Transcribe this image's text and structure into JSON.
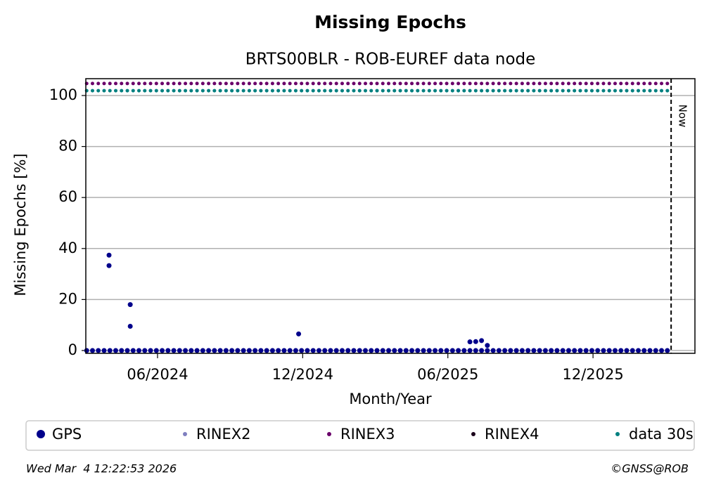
{
  "chart_data": {
    "type": "scatter",
    "title": "Missing Epochs",
    "subtitle": "BRTS00BLR - ROB-EUREF data node",
    "x_label": "Month/Year",
    "y_label": "Missing Epochs [%]",
    "xlim": [
      2024.167,
      2026.265
    ],
    "ylim": [
      -1.1,
      106.6
    ],
    "xticks": [
      {
        "value": 2024.414,
        "label": "06/2024"
      },
      {
        "value": 2024.914,
        "label": "12/2024"
      },
      {
        "value": 2025.414,
        "label": "06/2025"
      },
      {
        "value": 2025.914,
        "label": "12/2025"
      }
    ],
    "yticks": [
      0,
      20,
      40,
      60,
      80,
      100
    ],
    "grid": true,
    "now": 2026.183,
    "now_label": "Now",
    "x": [
      2024.17,
      2024.19,
      2024.21,
      2024.23,
      2024.25,
      2024.27,
      2024.29,
      2024.31,
      2024.33,
      2024.35,
      2024.37,
      2024.39,
      2024.41,
      2024.43,
      2024.45,
      2024.47,
      2024.49,
      2024.51,
      2024.53,
      2024.55,
      2024.57,
      2024.59,
      2024.61,
      2024.63,
      2024.65,
      2024.67,
      2024.69,
      2024.71,
      2024.73,
      2024.75,
      2024.77,
      2024.79,
      2024.81,
      2024.83,
      2024.85,
      2024.87,
      2024.89,
      2024.91,
      2024.93,
      2024.95,
      2024.97,
      2024.99,
      2025.01,
      2025.03,
      2025.05,
      2025.07,
      2025.09,
      2025.11,
      2025.13,
      2025.15,
      2025.17,
      2025.19,
      2025.21,
      2025.23,
      2025.25,
      2025.27,
      2025.29,
      2025.31,
      2025.33,
      2025.35,
      2025.37,
      2025.39,
      2025.41,
      2025.43,
      2025.45,
      2025.47,
      2025.49,
      2025.51,
      2025.53,
      2025.55,
      2025.57,
      2025.59,
      2025.61,
      2025.63,
      2025.65,
      2025.67,
      2025.69,
      2025.71,
      2025.73,
      2025.75,
      2025.77,
      2025.79,
      2025.81,
      2025.83,
      2025.85,
      2025.87,
      2025.89,
      2025.91,
      2025.93,
      2025.95,
      2025.97,
      2025.99,
      2026.01,
      2026.03,
      2026.05,
      2026.07,
      2026.09,
      2026.11,
      2026.13,
      2026.15,
      2026.17,
      2024.247,
      2024.247,
      2024.32,
      2024.32,
      2024.9,
      2025.49,
      2025.51,
      2025.53,
      2025.55
    ],
    "series": [
      {
        "name": "GPS",
        "color": "#00008b",
        "values": [
          0,
          0,
          0,
          0,
          0,
          0,
          0,
          0,
          0,
          0,
          0,
          0,
          0,
          0,
          0,
          0,
          0,
          0,
          0,
          0,
          0,
          0,
          0,
          0,
          0,
          0,
          0,
          0,
          0,
          0,
          0,
          0,
          0,
          0,
          0,
          0,
          0,
          0,
          0,
          0,
          0,
          0,
          0,
          0,
          0,
          0,
          0,
          0,
          0,
          0,
          0,
          0,
          0,
          0,
          0,
          0,
          0,
          0,
          0,
          0,
          0,
          0,
          0,
          0,
          0,
          0,
          0,
          0,
          0,
          0,
          0,
          0,
          0,
          0,
          0,
          0,
          0,
          0,
          0,
          0,
          0,
          0,
          0,
          0,
          0,
          0,
          0,
          0,
          0,
          0,
          0,
          0,
          0,
          0,
          0,
          0,
          0,
          0,
          0,
          0,
          0,
          33.3,
          37.4,
          18.0,
          9.5,
          6.5,
          3.4,
          3.5,
          3.9,
          2.0
        ]
      },
      {
        "name": "RINEX2",
        "color": "#7f7fbf"
      },
      {
        "name": "RINEX3",
        "color": "#6a006a",
        "values": [
          104.7,
          104.7,
          104.7,
          104.7,
          104.7,
          104.7,
          104.7,
          104.7,
          104.7,
          104.7,
          104.7,
          104.7,
          104.7,
          104.7,
          104.7,
          104.7,
          104.7,
          104.7,
          104.7,
          104.7,
          104.7,
          104.7,
          104.7,
          104.7,
          104.7,
          104.7,
          104.7,
          104.7,
          104.7,
          104.7,
          104.7,
          104.7,
          104.7,
          104.7,
          104.7,
          104.7,
          104.7,
          104.7,
          104.7,
          104.7,
          104.7,
          104.7,
          104.7,
          104.7,
          104.7,
          104.7,
          104.7,
          104.7,
          104.7,
          104.7,
          104.7,
          104.7,
          104.7,
          104.7,
          104.7,
          104.7,
          104.7,
          104.7,
          104.7,
          104.7,
          104.7,
          104.7,
          104.7,
          104.7,
          104.7,
          104.7,
          104.7,
          104.7,
          104.7,
          104.7,
          104.7,
          104.7,
          104.7,
          104.7,
          104.7,
          104.7,
          104.7,
          104.7,
          104.7,
          104.7,
          104.7,
          104.7,
          104.7,
          104.7,
          104.7,
          104.7,
          104.7,
          104.7,
          104.7,
          104.7,
          104.7,
          104.7,
          104.7,
          104.7,
          104.7,
          104.7,
          104.7,
          104.7,
          104.7,
          104.7,
          104.7,
          null,
          null,
          null,
          null,
          null,
          null,
          null,
          null,
          null
        ]
      },
      {
        "name": "RINEX4",
        "color": "#1a001a"
      },
      {
        "name": "data 30s",
        "color": "#008080",
        "values": [
          101.9,
          101.9,
          101.9,
          101.9,
          101.9,
          101.9,
          101.9,
          101.9,
          101.9,
          101.9,
          101.9,
          101.9,
          101.9,
          101.9,
          101.9,
          101.9,
          101.9,
          101.9,
          101.9,
          101.9,
          101.9,
          101.9,
          101.9,
          101.9,
          101.9,
          101.9,
          101.9,
          101.9,
          101.9,
          101.9,
          101.9,
          101.9,
          101.9,
          101.9,
          101.9,
          101.9,
          101.9,
          101.9,
          101.9,
          101.9,
          101.9,
          101.9,
          101.9,
          101.9,
          101.9,
          101.9,
          101.9,
          101.9,
          101.9,
          101.9,
          101.9,
          101.9,
          101.9,
          101.9,
          101.9,
          101.9,
          101.9,
          101.9,
          101.9,
          101.9,
          101.9,
          101.9,
          101.9,
          101.9,
          101.9,
          101.9,
          101.9,
          101.9,
          101.9,
          101.9,
          101.9,
          101.9,
          101.9,
          101.9,
          101.9,
          101.9,
          101.9,
          101.9,
          101.9,
          101.9,
          101.9,
          101.9,
          101.9,
          101.9,
          101.9,
          101.9,
          101.9,
          101.9,
          101.9,
          101.9,
          101.9,
          101.9,
          101.9,
          101.9,
          101.9,
          101.9,
          101.9,
          101.9,
          101.9,
          101.9,
          101.9,
          null,
          null,
          null,
          null,
          null,
          null,
          null,
          null,
          null
        ]
      }
    ],
    "footer_left": "Wed Mar  4 12:22:53 2026",
    "footer_right": "©GNSS@ROB"
  }
}
